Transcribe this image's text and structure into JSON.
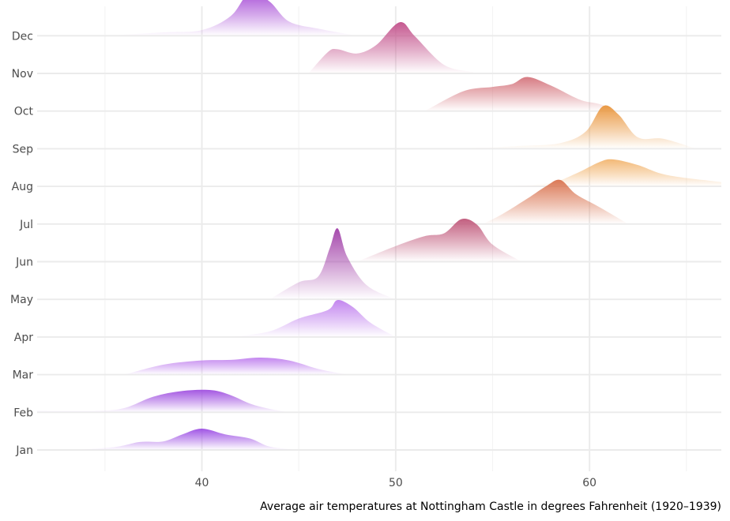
{
  "chart_data": {
    "type": "ridgeline",
    "title": "",
    "xlabel": "Average air temperatures at Nottingham Castle in degrees Fahrenheit (1920–1939)",
    "ylabel": "",
    "xlim": [
      31.5,
      66.8
    ],
    "x_ticks": [
      40,
      50,
      60
    ],
    "x_tick_labels": [
      "40",
      "50",
      "60"
    ],
    "x_minor": [
      35,
      45,
      55,
      65
    ],
    "categories": [
      "Jan",
      "Feb",
      "Mar",
      "Apr",
      "May",
      "Jun",
      "Jul",
      "Aug",
      "Sep",
      "Oct",
      "Nov",
      "Dec"
    ],
    "grid": true,
    "legend": "none",
    "series": [
      {
        "name": "Jan",
        "color": "#9b4ce3",
        "x": [
          33.4,
          35.5,
          36.8,
          38.0,
          39.0,
          40.0,
          41.2,
          42.5,
          43.5,
          45.0
        ],
        "y": [
          0.0,
          0.1,
          0.28,
          0.3,
          0.55,
          0.75,
          0.55,
          0.4,
          0.12,
          0.0
        ]
      },
      {
        "name": "Feb",
        "color": "#a050e0",
        "x": [
          31.5,
          34.5,
          36.0,
          37.5,
          39.0,
          40.5,
          41.5,
          42.5,
          43.5,
          44.5
        ],
        "y": [
          0.05,
          0.05,
          0.15,
          0.55,
          0.75,
          0.78,
          0.6,
          0.3,
          0.12,
          0.0
        ]
      },
      {
        "name": "Mar",
        "color": "#c080ee",
        "x": [
          36.0,
          38.0,
          40.0,
          41.5,
          43.0,
          44.5,
          46.0,
          47.5
        ],
        "y": [
          0.0,
          0.35,
          0.5,
          0.52,
          0.6,
          0.5,
          0.2,
          0.0
        ]
      },
      {
        "name": "Apr",
        "color": "#c080ee",
        "x": [
          41.5,
          43.5,
          45.0,
          46.5,
          47.0,
          47.8,
          48.7,
          50.0
        ],
        "y": [
          0.0,
          0.2,
          0.65,
          0.95,
          1.3,
          1.05,
          0.5,
          0.0
        ]
      },
      {
        "name": "May",
        "color": "#a140a8",
        "x": [
          43.5,
          45.0,
          46.0,
          46.6,
          47.0,
          47.5,
          48.5,
          50.0
        ],
        "y": [
          0.0,
          0.6,
          0.8,
          1.8,
          2.5,
          1.5,
          0.5,
          0.0
        ]
      },
      {
        "name": "Jun",
        "color": "#c0587a",
        "x": [
          48.0,
          50.0,
          51.5,
          52.5,
          53.4,
          54.2,
          55.0,
          56.5
        ],
        "y": [
          0.0,
          0.55,
          0.9,
          1.0,
          1.5,
          1.3,
          0.6,
          0.0
        ]
      },
      {
        "name": "Jul",
        "color": "#d9734f",
        "x": [
          54.5,
          55.5,
          56.8,
          57.8,
          58.5,
          59.3,
          60.5,
          62.0
        ],
        "y": [
          0.0,
          0.35,
          0.9,
          1.35,
          1.55,
          1.05,
          0.6,
          0.0
        ]
      },
      {
        "name": "Aug",
        "color": "#f2b570",
        "x": [
          56.0,
          58.0,
          59.3,
          60.5,
          61.2,
          62.5,
          64.0,
          66.8
        ],
        "y": [
          0.0,
          0.12,
          0.45,
          0.85,
          0.95,
          0.75,
          0.4,
          0.15
        ]
      },
      {
        "name": "Sep",
        "color": "#e9963e",
        "x": [
          53.5,
          56.5,
          58.5,
          59.8,
          60.7,
          61.5,
          62.5,
          63.8,
          65.5
        ],
        "y": [
          0.0,
          0.1,
          0.2,
          0.6,
          1.5,
          1.2,
          0.4,
          0.35,
          0.0
        ]
      },
      {
        "name": "Oct",
        "color": "#d4747c",
        "x": [
          51.5,
          53.5,
          55.0,
          56.0,
          56.8,
          58.0,
          59.5,
          60.5,
          61.5
        ],
        "y": [
          0.0,
          0.7,
          0.85,
          0.95,
          1.2,
          0.9,
          0.4,
          0.25,
          0.0
        ]
      },
      {
        "name": "Nov",
        "color": "#c2508a",
        "x": [
          45.5,
          46.5,
          47.0,
          48.0,
          49.0,
          50.2,
          51.0,
          52.5,
          54.0
        ],
        "y": [
          0.0,
          0.75,
          0.85,
          0.7,
          1.0,
          1.8,
          1.3,
          0.3,
          0.05
        ]
      },
      {
        "name": "Dec",
        "color": "#a54ad5",
        "x": [
          35.0,
          38.0,
          40.0,
          41.5,
          42.5,
          43.5,
          44.5,
          46.0,
          48.0
        ],
        "y": [
          0.0,
          0.12,
          0.2,
          0.7,
          1.55,
          1.2,
          0.5,
          0.25,
          0.0
        ]
      }
    ]
  }
}
